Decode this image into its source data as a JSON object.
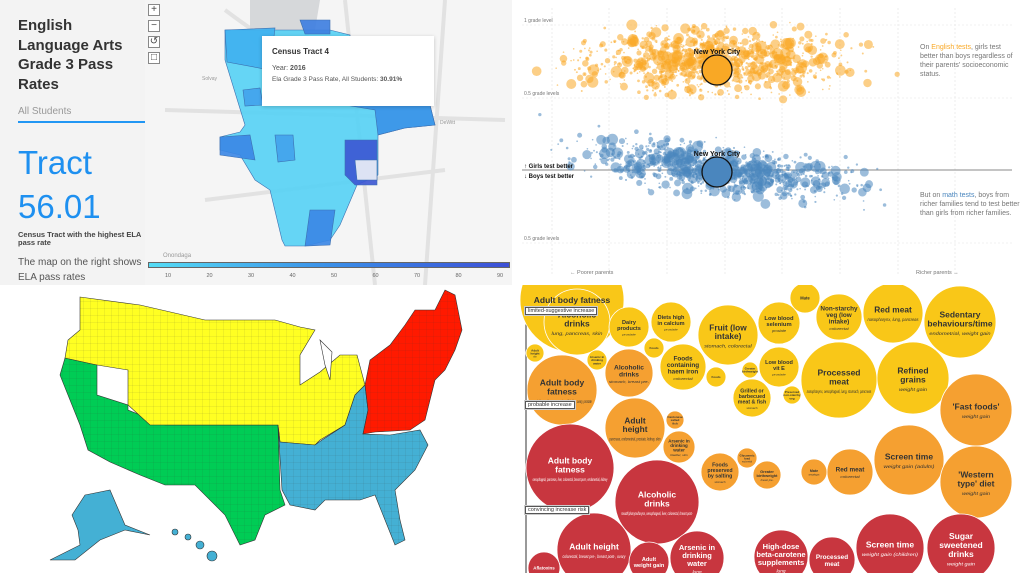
{
  "ela_map": {
    "title": "English Language Arts Grade 3 Pass Rates",
    "subtitle": "All Students",
    "highlight_label": "Tract",
    "highlight_value": "56.01",
    "highlight_caption": "Census Tract with the highest ELA pass rate",
    "description": "The map on the right shows ELA pass rates",
    "controls": {
      "zoom_in": "+",
      "zoom_out": "−",
      "reset": "↺",
      "select": "□"
    },
    "place_labels": [
      "Solvay",
      "Onondaga",
      "DeWitt"
    ],
    "tooltip": {
      "title": "Census Tract 4",
      "year_label": "Year:",
      "year": "2016",
      "rate_label": "Ela Grade 3 Pass Rate, All Students:",
      "rate": "30.91%"
    },
    "legend_ticks": [
      "10",
      "20",
      "30",
      "40",
      "50",
      "60",
      "70",
      "80",
      "90"
    ],
    "colors": {
      "low": "#55dcf5",
      "high": "#3c4fd6",
      "accent": "#1e90f0"
    }
  },
  "chart_data": [
    {
      "type": "scatter",
      "panels": [
        {
          "subject": "English",
          "y_label_top": "1 grade level",
          "y_label_bottom": "0.5 grade levels",
          "color": "#f9a825",
          "highlight": "New York City"
        },
        {
          "subject": "Math",
          "y_label_bottom": "0.5 grade levels",
          "color": "#4a86be",
          "highlight": "New York City"
        }
      ],
      "zero_line_labels": {
        "above": "↑ Girls test better",
        "below": "↓ Boys test better"
      },
      "xlabel_left": "← Poorer parents",
      "xlabel_right": "Richer parents →",
      "annotations": {
        "english": {
          "pre": "On ",
          "hl": "English tests",
          "post": ", girls test better than boys regardless of their parents' socioeconomic status."
        },
        "math": {
          "pre": "But on ",
          "hl": "math tests",
          "post": ", boys from richer families tend to test better than girls from richer families."
        }
      },
      "grid": true
    },
    {
      "type": "bubble",
      "levels": {
        "limited": {
          "label": "limited-suggestive increase",
          "color": "#f9c718"
        },
        "probable": {
          "label": "probable increase",
          "color": "#f5a031"
        },
        "convincing": {
          "label": "convincing increase risk",
          "color": "#c8363f"
        }
      },
      "bubbles": [
        {
          "label": "Adult body fatness",
          "sub": "",
          "level": "limited"
        },
        {
          "label": "Alcoholic drinks",
          "sub": "lung, pancreas, skin",
          "level": "limited"
        },
        {
          "label": "Dairy products",
          "sub": "prostate",
          "level": "limited"
        },
        {
          "label": "Diets high in calcium",
          "sub": "prostate",
          "level": "limited"
        },
        {
          "label": "Fruit (low intake)",
          "sub": "stomach, colorectal",
          "level": "limited"
        },
        {
          "label": "Low blood selenium",
          "sub": "prostate",
          "level": "limited"
        },
        {
          "label": "Mate",
          "sub": "",
          "level": "limited"
        },
        {
          "label": "Non-starchy veg (low intake)",
          "sub": "colorectal",
          "level": "limited"
        },
        {
          "label": "Red meat",
          "sub": "nasopharynx, lung, pancreas",
          "level": "limited"
        },
        {
          "label": "Sedentary behaviours/time",
          "sub": "endometrial, weight gain",
          "level": "limited"
        },
        {
          "label": "Adult height",
          "sub": "skin",
          "level": "limited"
        },
        {
          "label": "Arsenic in drinking water",
          "sub": "",
          "level": "limited"
        },
        {
          "label": "Foods",
          "sub": "",
          "level": "limited"
        },
        {
          "label": "Alcoholic drinks",
          "sub": "stomach, breast pre-",
          "level": "probable"
        },
        {
          "label": "Foods containing haem iron",
          "sub": "colorectal",
          "level": "limited"
        },
        {
          "label": "Foods",
          "sub": "",
          "level": "limited"
        },
        {
          "label": "Greater birthweight",
          "sub": "",
          "level": "limited"
        },
        {
          "label": "Low blood vit E",
          "sub": "prostate",
          "level": "limited"
        },
        {
          "label": "Processed meat",
          "sub": "nasopharynx, oesophageal, lung, stomach, pancreas",
          "level": "limited"
        },
        {
          "label": "Refined grains",
          "sub": "weight gain",
          "level": "limited"
        },
        {
          "label": "Adult body fatness",
          "sub": "mouth/pharynx/larynx, stomach, gallbladder, ovary, prostate",
          "level": "probable"
        },
        {
          "label": "Grilled or barbecued meat & fish",
          "sub": "stomach",
          "level": "limited"
        },
        {
          "label": "Preserved non-starchy veg",
          "sub": "",
          "level": "limited"
        },
        {
          "label": "'Fast foods'",
          "sub": "weight gain",
          "level": "probable"
        },
        {
          "label": "Adult height",
          "sub": "pancreas, endometrial, prostate, kidney, skin",
          "level": "probable"
        },
        {
          "label": "Cantonese salted fish",
          "sub": "",
          "level": "probable"
        },
        {
          "label": "Arsenic in drinking water",
          "sub": "bladder, skin",
          "level": "probable"
        },
        {
          "label": "Foods preserved by salting",
          "sub": "stomach",
          "level": "probable"
        },
        {
          "label": "Glycaemic load",
          "sub": "endometrial",
          "level": "probable"
        },
        {
          "label": "Greater birthweight",
          "sub": "breast pre-",
          "level": "probable"
        },
        {
          "label": "Mate",
          "sub": "oesophagus",
          "level": "probable"
        },
        {
          "label": "Red meat",
          "sub": "colorectal",
          "level": "probable"
        },
        {
          "label": "Screen time",
          "sub": "weight gain (adults)",
          "level": "probable"
        },
        {
          "label": "'Western type' diet",
          "sub": "weight gain",
          "level": "probable"
        },
        {
          "label": "Adult body fatness",
          "sub": "oesophageal, pancreas, liver, colorectal, breast post-, endometrial, kidney",
          "level": "convincing"
        },
        {
          "label": "Alcoholic drinks",
          "sub": "mouth/pharynx/larynx, oesophageal, liver, colorectal, breast post-",
          "level": "convincing"
        },
        {
          "label": "Adult height",
          "sub": "colorectal, breast pre-, breast post-, ovary",
          "level": "convincing"
        },
        {
          "label": "Aflatoxins",
          "sub": "",
          "level": "convincing"
        },
        {
          "label": "Adult weight gain",
          "sub": "",
          "level": "convincing"
        },
        {
          "label": "Arsenic in drinking water",
          "sub": "lung",
          "level": "convincing"
        },
        {
          "label": "High-dose beta-carotene supplements",
          "sub": "lung",
          "level": "convincing"
        },
        {
          "label": "Processed meat",
          "sub": "",
          "level": "convincing"
        },
        {
          "label": "Screen time",
          "sub": "weight gain (children)",
          "level": "convincing"
        },
        {
          "label": "Sugar sweetened drinks",
          "sub": "weight gain",
          "level": "convincing"
        }
      ]
    }
  ],
  "us_map": {
    "regions": [
      {
        "id": "west",
        "color": "#00cc55"
      },
      {
        "id": "north-central",
        "color": "#ffff22"
      },
      {
        "id": "south",
        "color": "#44b0d4"
      },
      {
        "id": "northeast",
        "color": "#ff1a00"
      }
    ]
  }
}
